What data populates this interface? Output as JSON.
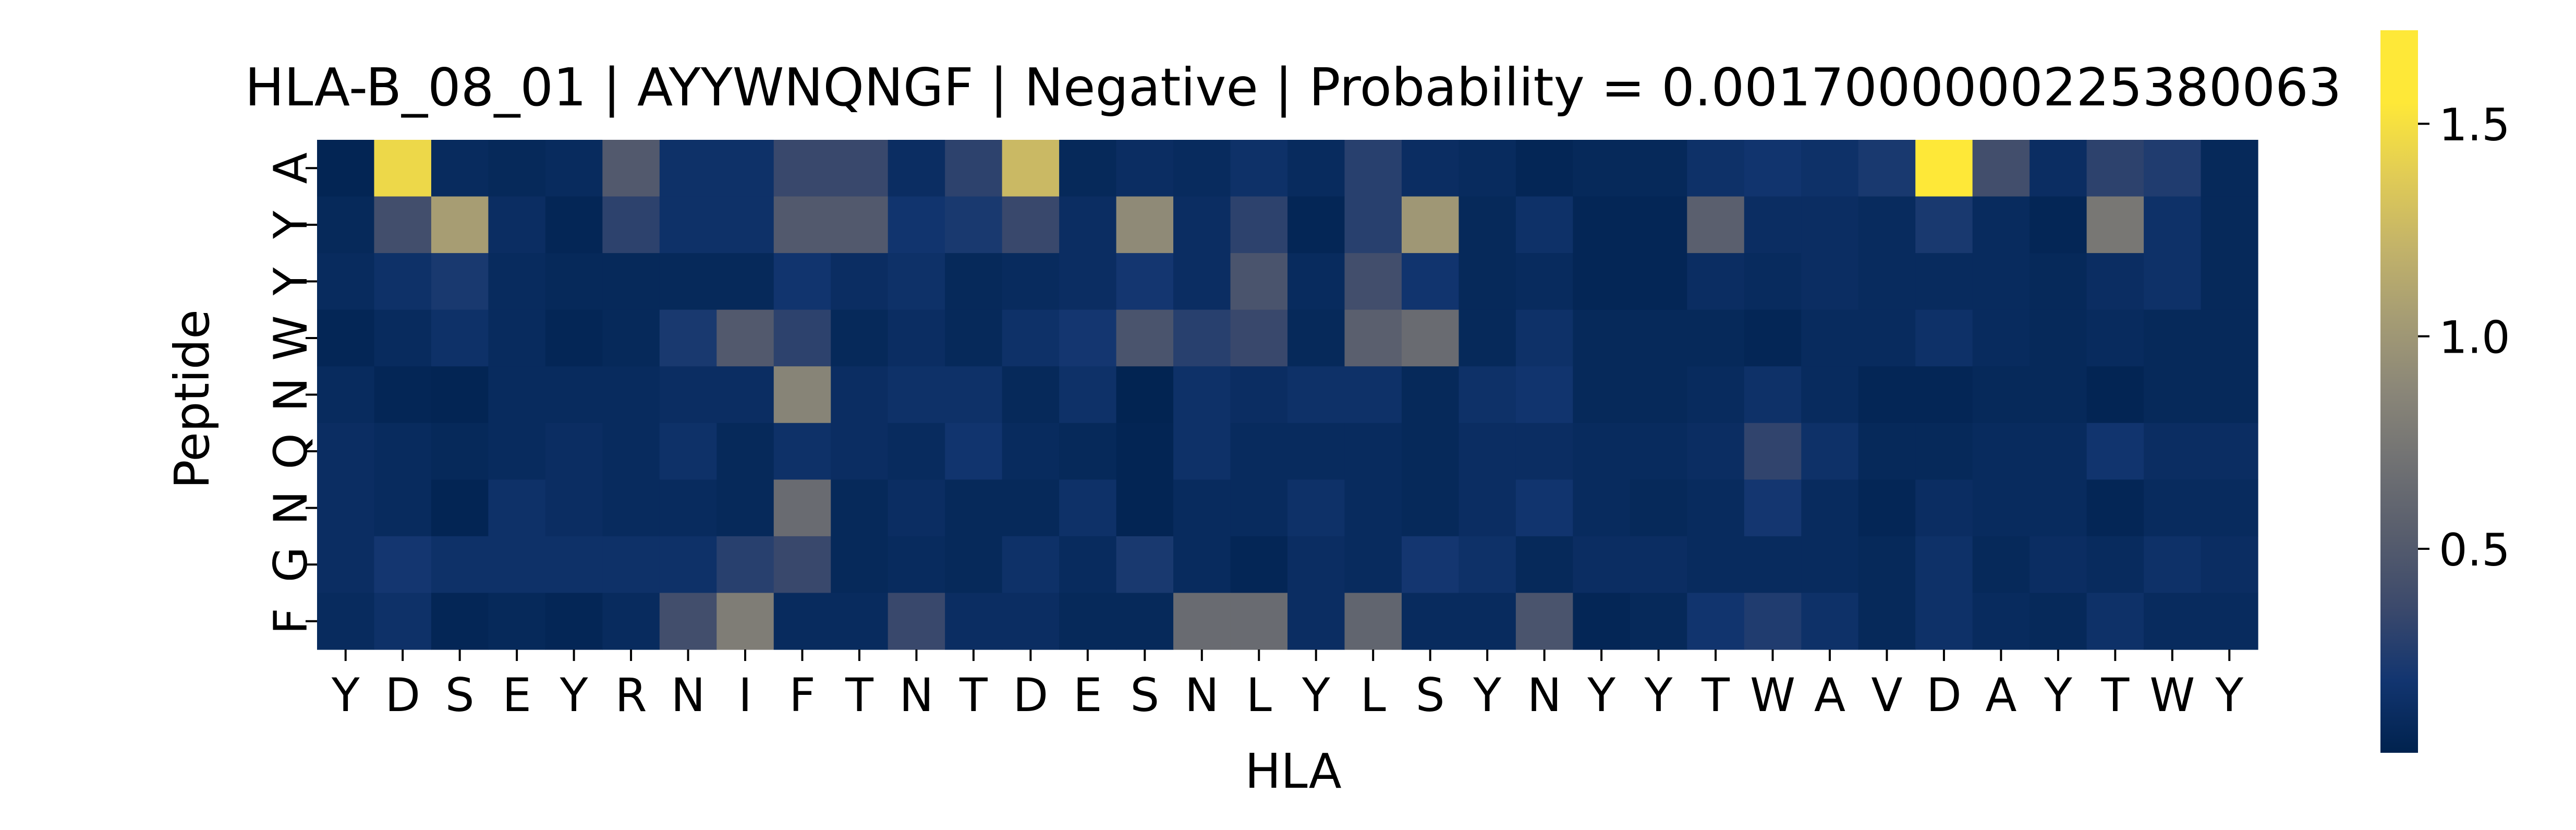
{
  "chart_data": {
    "type": "heatmap",
    "title": "HLA-B_08_01 | AYYWNQNGF | Negative | Probability = 0.0017000000225380063",
    "xlabel": "HLA",
    "ylabel": "Peptide",
    "x_categories": [
      "Y",
      "D",
      "S",
      "E",
      "Y",
      "R",
      "N",
      "I",
      "F",
      "T",
      "N",
      "T",
      "D",
      "E",
      "S",
      "N",
      "L",
      "Y",
      "L",
      "S",
      "Y",
      "N",
      "Y",
      "Y",
      "T",
      "W",
      "A",
      "V",
      "D",
      "A",
      "Y",
      "T",
      "W",
      "Y"
    ],
    "y_categories": [
      "A",
      "Y",
      "Y",
      "W",
      "N",
      "Q",
      "N",
      "G",
      "F"
    ],
    "values": [
      [
        0.05,
        1.45,
        0.1,
        0.08,
        0.1,
        0.5,
        0.15,
        0.15,
        0.35,
        0.35,
        0.12,
        0.3,
        1.25,
        0.08,
        0.12,
        0.1,
        0.15,
        0.1,
        0.28,
        0.12,
        0.1,
        0.06,
        0.08,
        0.08,
        0.15,
        0.18,
        0.15,
        0.22,
        1.72,
        0.4,
        0.12,
        0.3,
        0.25,
        0.08
      ],
      [
        0.08,
        0.4,
        1.05,
        0.12,
        0.06,
        0.3,
        0.15,
        0.15,
        0.5,
        0.5,
        0.18,
        0.22,
        0.35,
        0.12,
        0.9,
        0.12,
        0.3,
        0.06,
        0.28,
        1.0,
        0.08,
        0.15,
        0.06,
        0.06,
        0.55,
        0.12,
        0.12,
        0.1,
        0.22,
        0.1,
        0.06,
        0.75,
        0.15,
        0.08
      ],
      [
        0.1,
        0.15,
        0.22,
        0.1,
        0.08,
        0.08,
        0.08,
        0.08,
        0.18,
        0.12,
        0.15,
        0.08,
        0.1,
        0.12,
        0.2,
        0.12,
        0.45,
        0.1,
        0.4,
        0.18,
        0.08,
        0.1,
        0.06,
        0.06,
        0.12,
        0.1,
        0.12,
        0.1,
        0.1,
        0.1,
        0.08,
        0.12,
        0.15,
        0.08
      ],
      [
        0.06,
        0.1,
        0.15,
        0.1,
        0.06,
        0.08,
        0.22,
        0.5,
        0.3,
        0.08,
        0.12,
        0.08,
        0.15,
        0.2,
        0.45,
        0.28,
        0.35,
        0.08,
        0.55,
        0.65,
        0.08,
        0.15,
        0.08,
        0.08,
        0.08,
        0.06,
        0.1,
        0.1,
        0.15,
        0.1,
        0.08,
        0.1,
        0.08,
        0.08
      ],
      [
        0.1,
        0.06,
        0.05,
        0.1,
        0.1,
        0.1,
        0.12,
        0.12,
        0.85,
        0.12,
        0.15,
        0.15,
        0.08,
        0.15,
        0.04,
        0.15,
        0.12,
        0.15,
        0.15,
        0.08,
        0.15,
        0.18,
        0.08,
        0.08,
        0.1,
        0.15,
        0.1,
        0.06,
        0.06,
        0.08,
        0.08,
        0.05,
        0.08,
        0.08
      ],
      [
        0.12,
        0.1,
        0.08,
        0.1,
        0.12,
        0.1,
        0.15,
        0.08,
        0.15,
        0.12,
        0.1,
        0.18,
        0.1,
        0.08,
        0.05,
        0.15,
        0.1,
        0.1,
        0.1,
        0.08,
        0.12,
        0.12,
        0.1,
        0.1,
        0.12,
        0.32,
        0.15,
        0.08,
        0.08,
        0.1,
        0.1,
        0.18,
        0.12,
        0.12
      ],
      [
        0.12,
        0.1,
        0.05,
        0.15,
        0.12,
        0.1,
        0.1,
        0.08,
        0.65,
        0.08,
        0.12,
        0.08,
        0.08,
        0.15,
        0.05,
        0.1,
        0.1,
        0.15,
        0.1,
        0.08,
        0.12,
        0.18,
        0.1,
        0.08,
        0.1,
        0.2,
        0.1,
        0.06,
        0.12,
        0.1,
        0.1,
        0.06,
        0.1,
        0.1
      ],
      [
        0.12,
        0.2,
        0.15,
        0.15,
        0.15,
        0.15,
        0.15,
        0.28,
        0.35,
        0.08,
        0.1,
        0.08,
        0.15,
        0.1,
        0.22,
        0.1,
        0.06,
        0.12,
        0.1,
        0.2,
        0.15,
        0.08,
        0.12,
        0.12,
        0.1,
        0.1,
        0.1,
        0.08,
        0.15,
        0.08,
        0.12,
        0.1,
        0.15,
        0.12
      ],
      [
        0.1,
        0.15,
        0.06,
        0.08,
        0.06,
        0.1,
        0.4,
        0.8,
        0.1,
        0.1,
        0.35,
        0.12,
        0.12,
        0.08,
        0.08,
        0.65,
        0.65,
        0.12,
        0.6,
        0.1,
        0.1,
        0.45,
        0.06,
        0.08,
        0.18,
        0.25,
        0.15,
        0.08,
        0.15,
        0.1,
        0.08,
        0.15,
        0.1,
        0.1
      ]
    ],
    "colormap": "cividis",
    "colorbar": {
      "vmin": 0.02,
      "vmax": 1.72,
      "ticks": [
        0.5,
        1.0,
        1.5
      ],
      "tick_labels": [
        "0.5",
        "1.0",
        "1.5"
      ]
    },
    "grid": false
  }
}
